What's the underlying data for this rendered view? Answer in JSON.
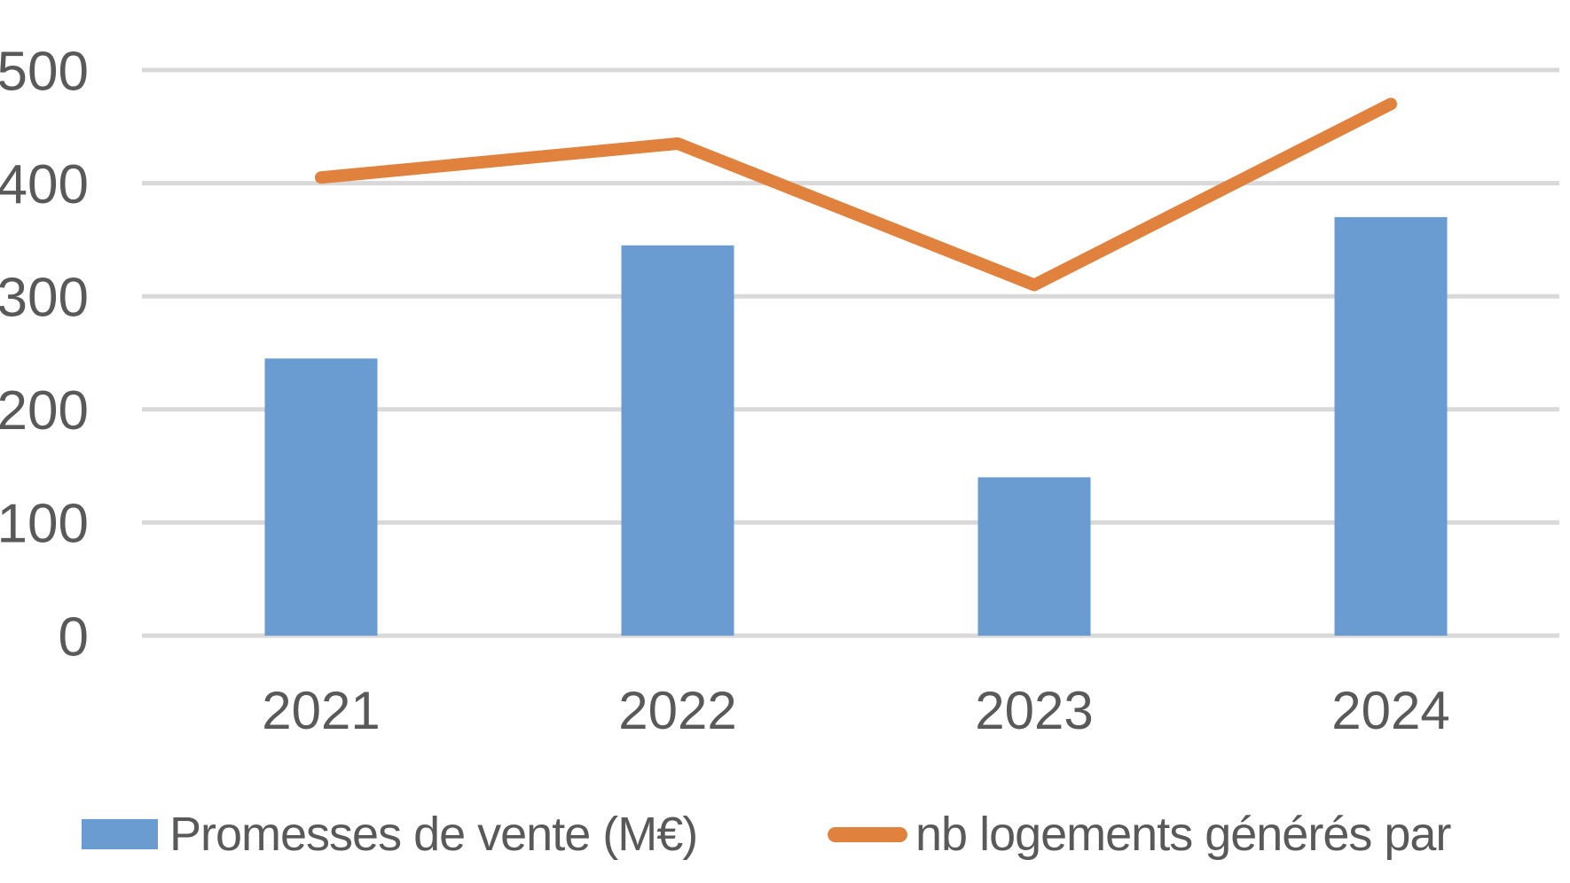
{
  "chart_data": {
    "type": "combo",
    "title": "",
    "xlabel": "",
    "ylabel": "",
    "categories": [
      "2021",
      "2022",
      "2023",
      "2024"
    ],
    "series": [
      {
        "name": "Promesses de vente (M€)",
        "type": "bar",
        "color": "#6A9BD1",
        "values": [
          245,
          345,
          140,
          370
        ]
      },
      {
        "name": "nb logements générés par",
        "type": "line",
        "color": "#E0823E",
        "values": [
          405,
          435,
          310,
          470
        ]
      }
    ],
    "ylim": [
      0,
      500
    ],
    "yticks": [
      0,
      100,
      200,
      300,
      400,
      500
    ],
    "grid": true,
    "legend_position": "bottom",
    "colors": {
      "gridline": "#D9D9D9",
      "axis_text": "#595959",
      "background": "#FFFFFF"
    }
  }
}
